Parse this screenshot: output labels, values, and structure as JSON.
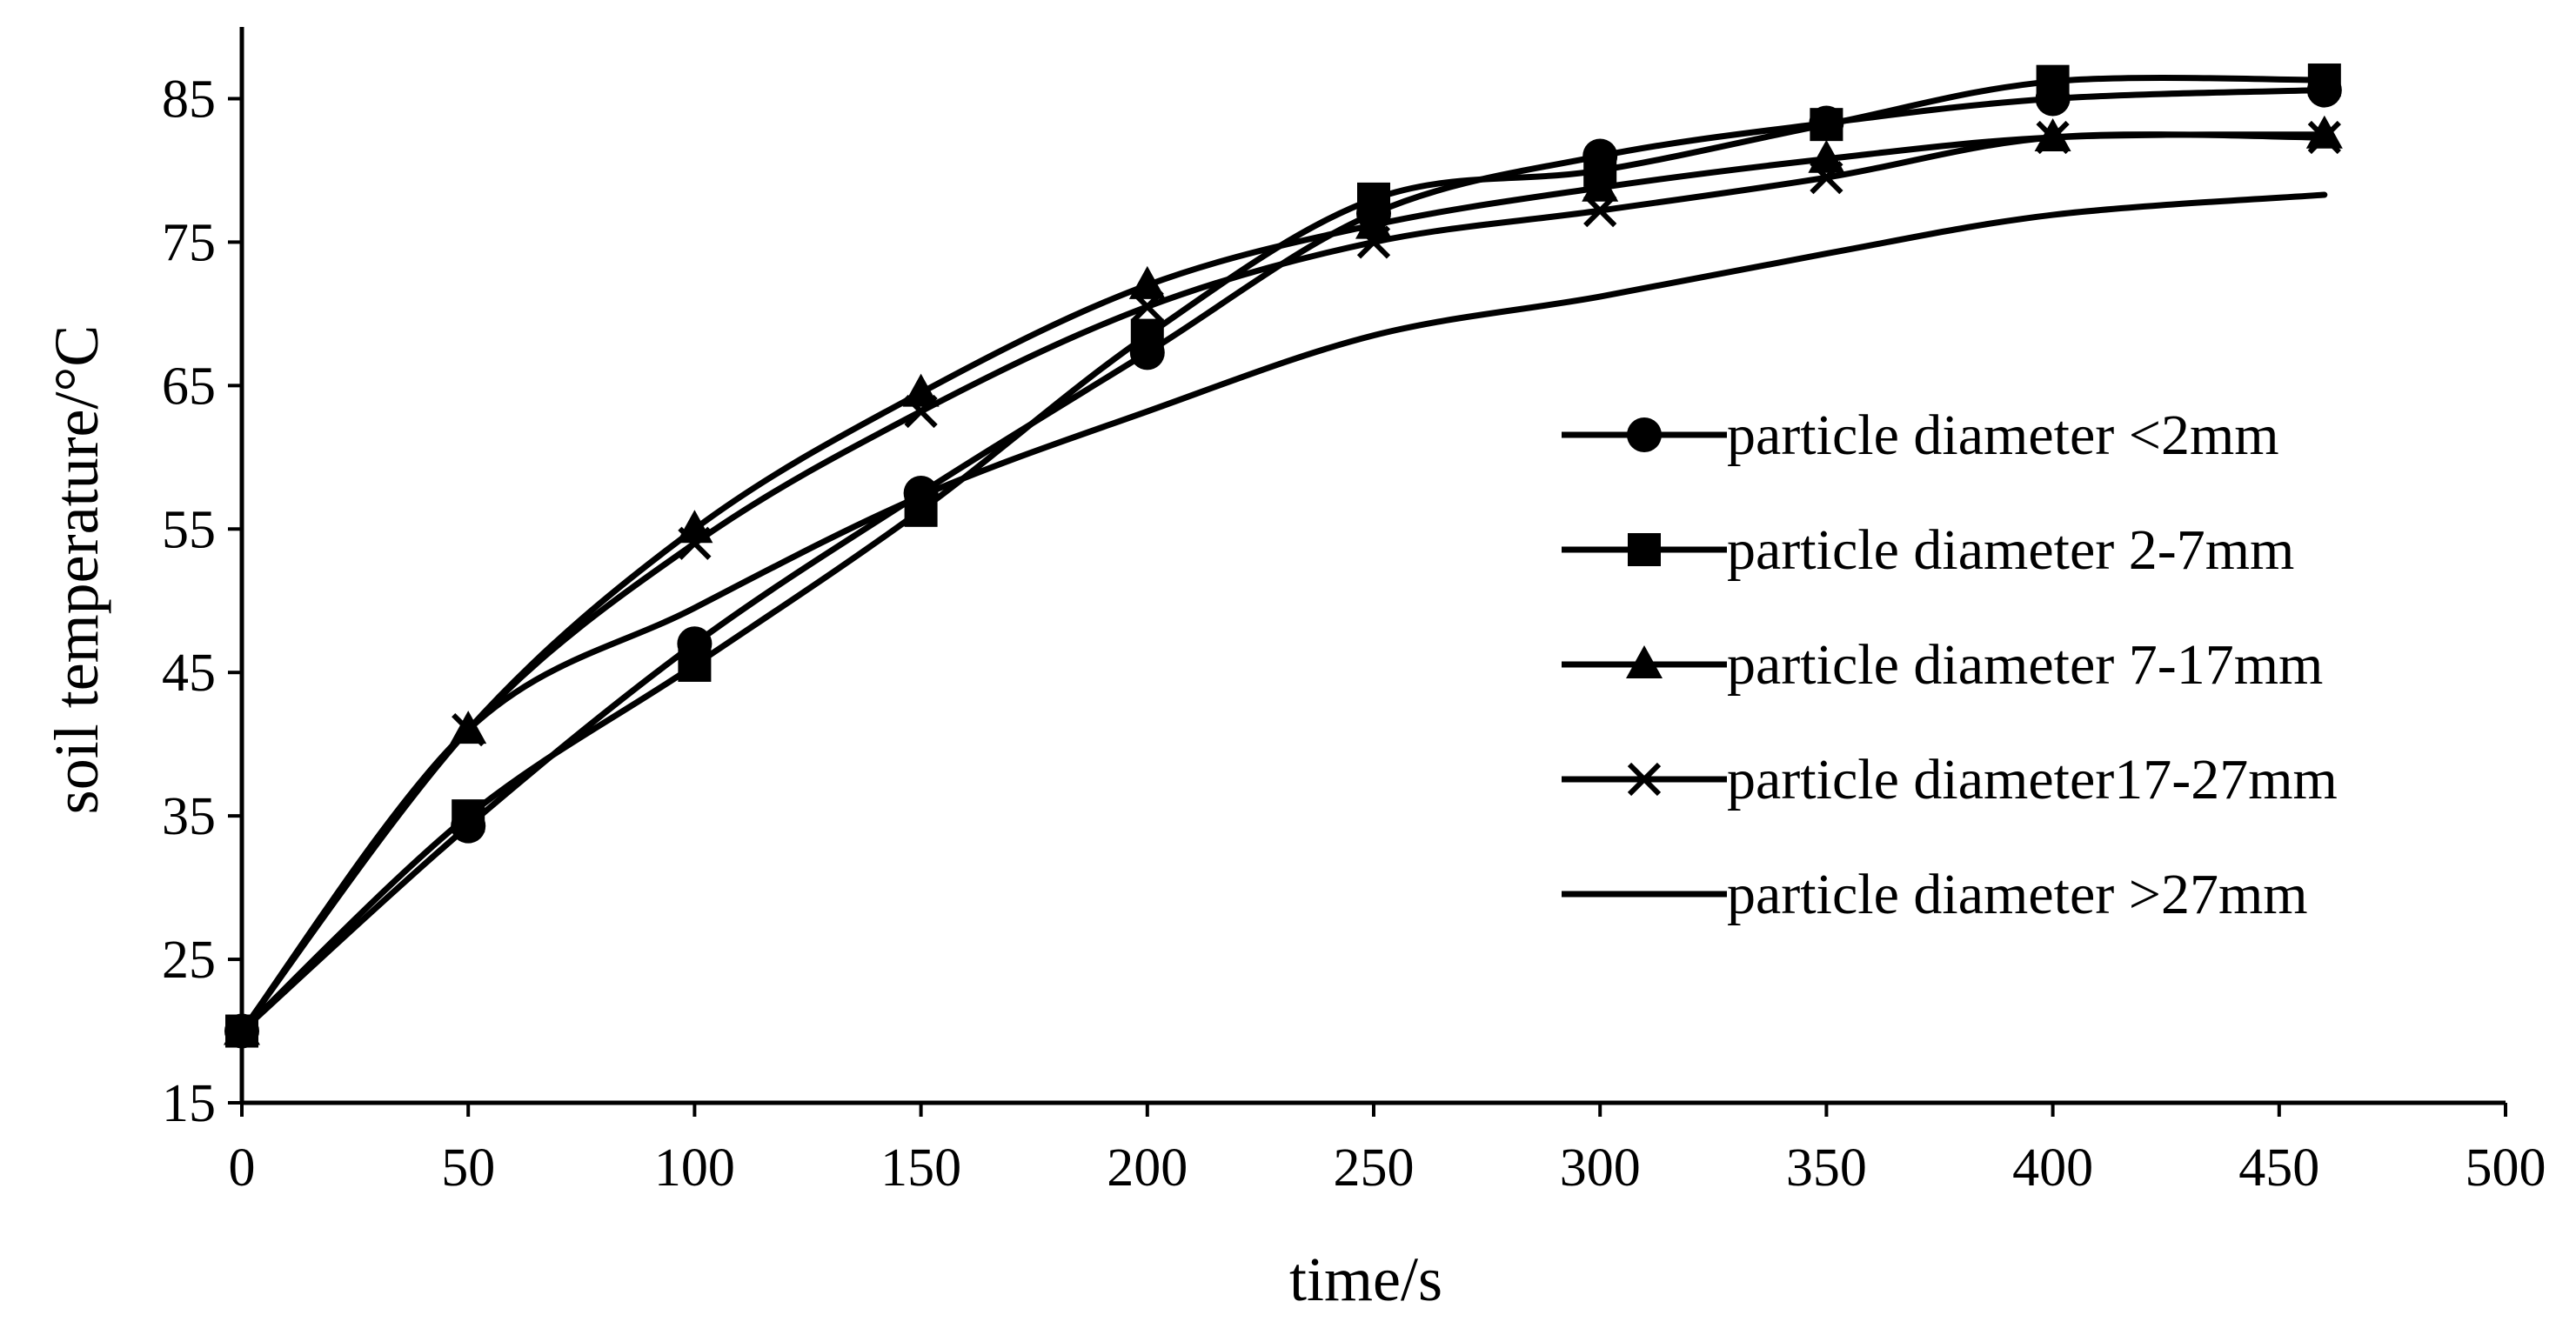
{
  "chart_data": {
    "type": "line",
    "title": "",
    "xlabel": "time/s",
    "ylabel": "soil temperature/°C",
    "xlim": [
      0,
      500
    ],
    "ylim": [
      15,
      90
    ],
    "xticks": [
      0,
      50,
      100,
      150,
      200,
      250,
      300,
      350,
      400,
      450,
      500
    ],
    "yticks": [
      15,
      25,
      35,
      45,
      55,
      65,
      75,
      85
    ],
    "grid": false,
    "legend_position": "right",
    "line_color": "#000000",
    "series": [
      {
        "name": "particle diameter <2mm",
        "marker": "circle",
        "x": [
          0,
          50,
          100,
          150,
          200,
          250,
          300,
          350,
          400,
          460
        ],
        "y": [
          20,
          34.3,
          47,
          57.5,
          67.3,
          77,
          81,
          83.3,
          85,
          85.6
        ]
      },
      {
        "name": "particle diameter 2-7mm",
        "marker": "square",
        "x": [
          0,
          50,
          100,
          150,
          200,
          250,
          300,
          350,
          400,
          460
        ],
        "y": [
          20,
          35,
          45.5,
          56.3,
          68.5,
          78,
          80,
          83.2,
          86.2,
          86.3
        ]
      },
      {
        "name": "particle diameter 7-17mm",
        "marker": "triangle",
        "x": [
          0,
          50,
          100,
          150,
          200,
          250,
          300,
          350,
          400,
          460
        ],
        "y": [
          20,
          41,
          55,
          64.5,
          72,
          76.2,
          78.8,
          80.8,
          82.3,
          82.5
        ]
      },
      {
        "name": "particle diameter17-27mm",
        "marker": "x",
        "x": [
          0,
          50,
          100,
          150,
          200,
          250,
          300,
          350,
          400,
          460
        ],
        "y": [
          20,
          41,
          54,
          63.2,
          70.5,
          75,
          77.2,
          79.5,
          82.3,
          82.3
        ]
      },
      {
        "name": "particle diameter >27mm",
        "marker": "none",
        "x": [
          0,
          50,
          100,
          150,
          200,
          250,
          300,
          350,
          400,
          460
        ],
        "y": [
          20,
          41,
          49.5,
          57.3,
          63.2,
          68.5,
          71.2,
          74.2,
          76.9,
          78.3
        ]
      }
    ]
  }
}
